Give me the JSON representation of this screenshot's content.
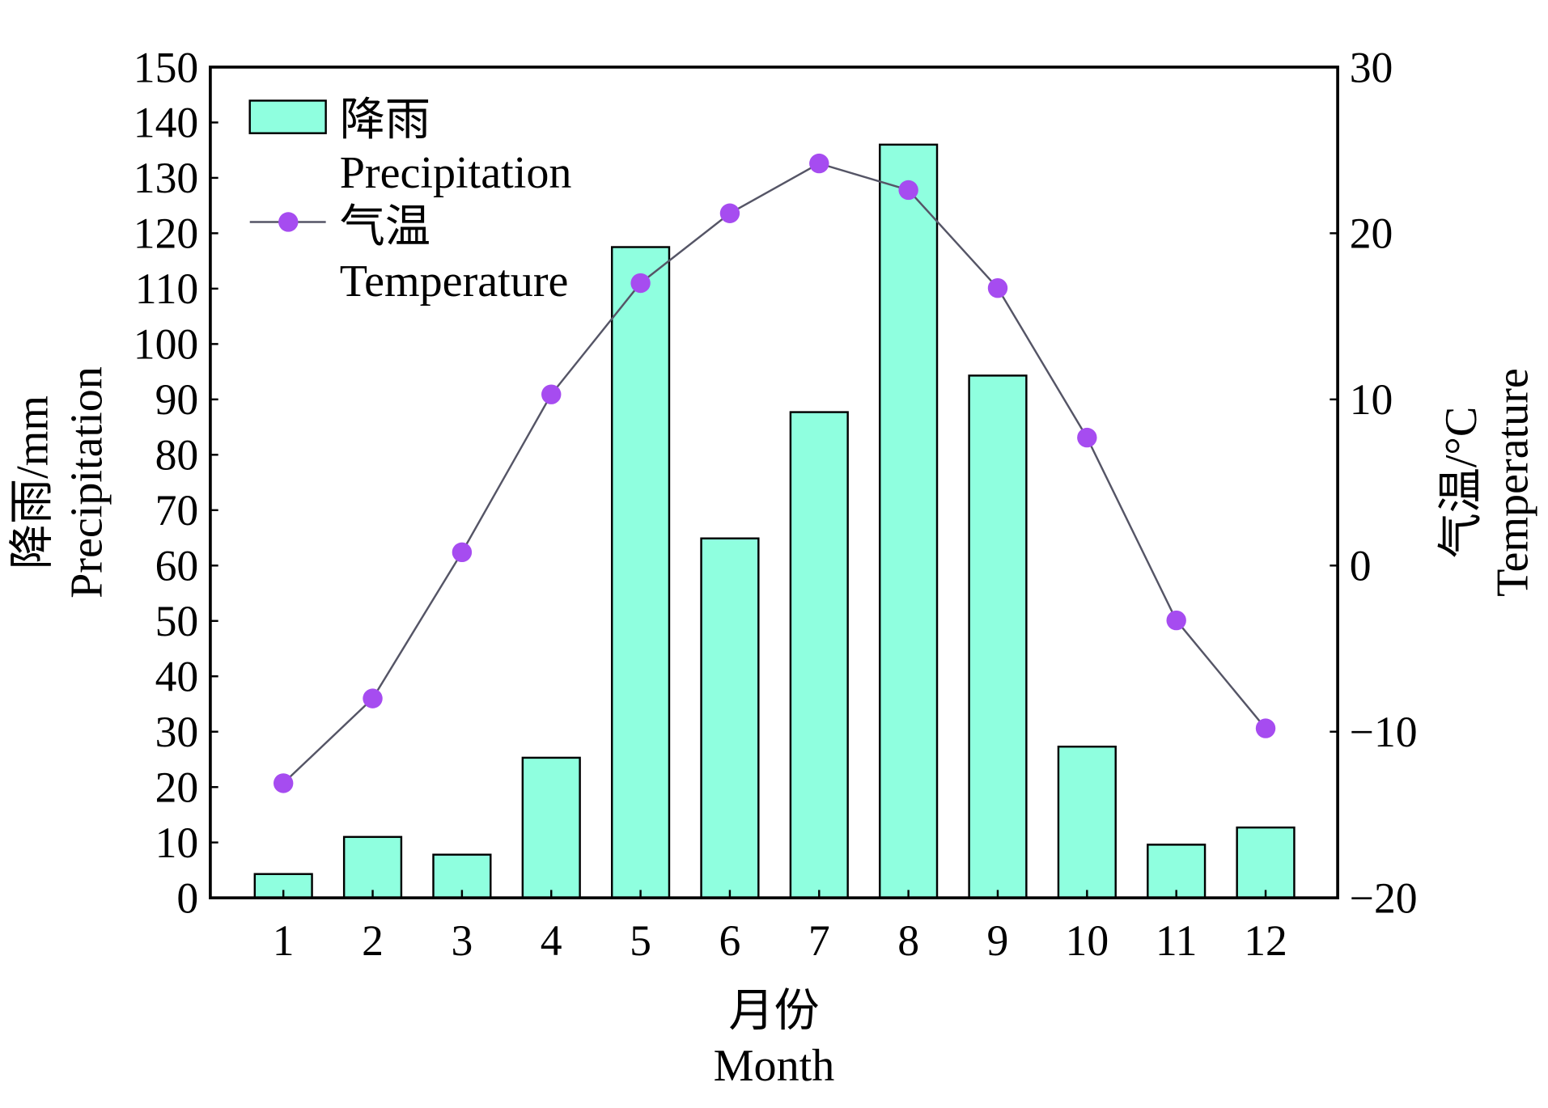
{
  "chart_data": {
    "type": "bar+line",
    "categories": [
      "1",
      "2",
      "3",
      "4",
      "5",
      "6",
      "7",
      "8",
      "9",
      "10",
      "11",
      "12"
    ],
    "series": [
      {
        "name": "降雨 Precipitation",
        "type": "bar",
        "axis": "left",
        "color": "#8fffdf",
        "values": [
          4.3,
          11.0,
          7.8,
          25.3,
          117.5,
          64.9,
          87.7,
          136.0,
          94.3,
          27.3,
          9.6,
          12.7
        ]
      },
      {
        "name": "气温 Temperature",
        "type": "line",
        "axis": "right",
        "color": "#a64cf0",
        "values": [
          -13.1,
          -8.0,
          0.8,
          10.3,
          17.0,
          21.2,
          24.2,
          22.6,
          16.7,
          7.7,
          -3.3,
          -9.8
        ]
      }
    ],
    "xlabel": {
      "cn": "月份",
      "en": "Month"
    },
    "ylabel_left": {
      "cn": "降雨/mm",
      "en": "Precipitation"
    },
    "ylabel_right": {
      "cn": "气温/°C",
      "en": "Temperature"
    },
    "ylim_left": [
      0,
      150
    ],
    "ylim_right": [
      -20,
      30
    ],
    "yticks_left": [
      "0",
      "10",
      "20",
      "30",
      "40",
      "50",
      "60",
      "70",
      "80",
      "90",
      "100",
      "110",
      "120",
      "130",
      "140",
      "150"
    ],
    "yticks_right": [
      "−20",
      "−10",
      "0",
      "10",
      "20",
      "30"
    ],
    "legend": {
      "placement": "top-left",
      "items": [
        {
          "cn": "降雨",
          "en": "Precipitation"
        },
        {
          "cn": "气温",
          "en": "Temperature"
        }
      ]
    }
  }
}
